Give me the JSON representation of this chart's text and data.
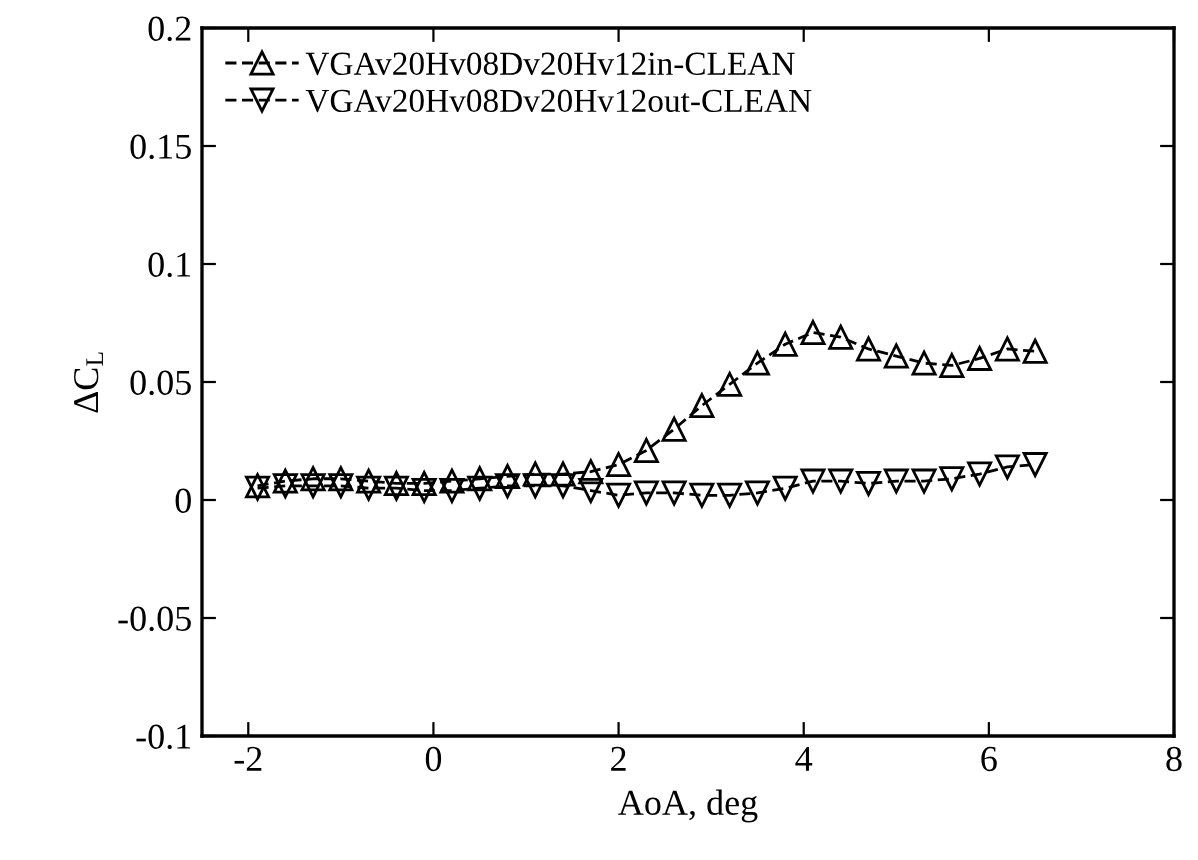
{
  "chart_data": {
    "type": "line",
    "xlabel": "AoA, deg",
    "ylabel": "ΔC$_{L}$",
    "x": [
      -1.9,
      -1.6,
      -1.3,
      -1.0,
      -0.7,
      -0.4,
      -0.1,
      0.2,
      0.5,
      0.8,
      1.1,
      1.4,
      1.7,
      2.0,
      2.3,
      2.6,
      2.9,
      3.2,
      3.5,
      3.8,
      4.1,
      4.4,
      4.7,
      5.0,
      5.3,
      5.6,
      5.9,
      6.2,
      6.5
    ],
    "series": [
      {
        "name": "VGAv20Hv08Dv20Hv12in-CLEAN",
        "color": "#000000",
        "marker": "triangle",
        "values": [
          0.006,
          0.008,
          0.009,
          0.009,
          0.008,
          0.007,
          0.007,
          0.008,
          0.009,
          0.01,
          0.011,
          0.011,
          0.012,
          0.015,
          0.021,
          0.03,
          0.04,
          0.049,
          0.058,
          0.066,
          0.071,
          0.069,
          0.064,
          0.061,
          0.058,
          0.057,
          0.06,
          0.064,
          0.063
        ]
      },
      {
        "name": "VGAv20Hv08Dv20Hv12out-CLEAN",
        "color": "#000000",
        "marker": "triangle_down",
        "values": [
          0.005,
          0.006,
          0.006,
          0.006,
          0.005,
          0.005,
          0.004,
          0.004,
          0.005,
          0.006,
          0.006,
          0.006,
          0.004,
          0.002,
          0.003,
          0.003,
          0.002,
          0.002,
          0.003,
          0.005,
          0.008,
          0.008,
          0.007,
          0.008,
          0.008,
          0.009,
          0.011,
          0.014,
          0.015
        ]
      }
    ],
    "line_style": "dashed",
    "xlim": [
      -2.5,
      8
    ],
    "xticks": [
      -2,
      0,
      2,
      4,
      6,
      8
    ],
    "ylim": [
      -0.1,
      0.2
    ],
    "yticks": [
      -0.1,
      -0.05,
      0,
      0.05,
      0.1,
      0.15,
      0.2
    ],
    "grid": false,
    "legend": "top left"
  }
}
